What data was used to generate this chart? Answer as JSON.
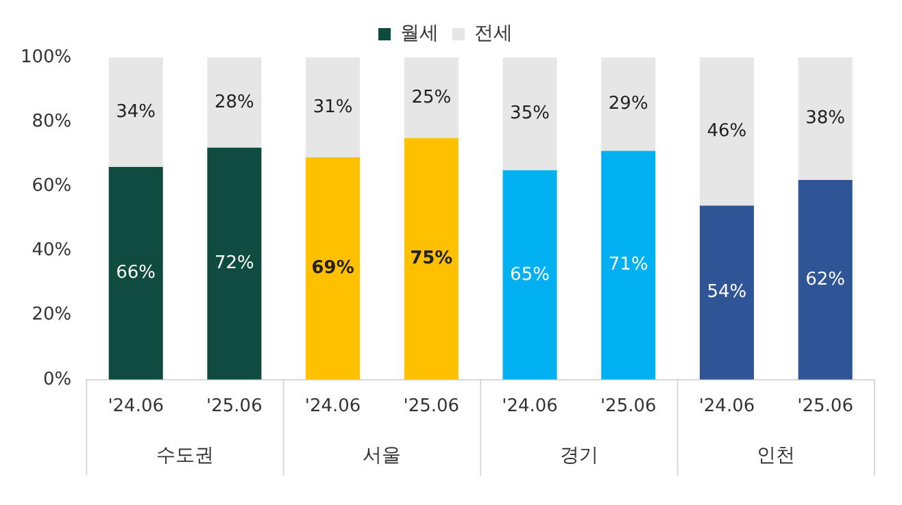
{
  "chart_data": {
    "type": "bar",
    "stacked": true,
    "categories": [
      "'24.06",
      "'25.06",
      "'24.06",
      "'25.06",
      "'24.06",
      "'25.06",
      "'24.06",
      "'25.06"
    ],
    "series": [
      {
        "name": "월세",
        "colors": [
          "#0f4c3f",
          "#0f4c3f",
          "#ffc000",
          "#ffc000",
          "#00b0f0",
          "#00b0f0",
          "#2f5597",
          "#2f5597"
        ],
        "values": [
          66,
          72,
          69,
          75,
          65,
          71,
          54,
          62
        ],
        "value_labels": [
          "66%",
          "72%",
          "69%",
          "75%",
          "65%",
          "71%",
          "54%",
          "62%"
        ]
      },
      {
        "name": "전세",
        "color": "#e7e6e6",
        "values": [
          34,
          28,
          31,
          25,
          35,
          29,
          46,
          38
        ],
        "value_labels": [
          "34%",
          "28%",
          "31%",
          "25%",
          "35%",
          "29%",
          "46%",
          "38%"
        ]
      }
    ],
    "annotations": [
      "수도권",
      "서울",
      "경기",
      "인천"
    ],
    "ylim": [
      0,
      100
    ],
    "yticks": [
      {
        "value": 0,
        "label": "0%"
      },
      {
        "value": 20,
        "label": "20%"
      },
      {
        "value": 40,
        "label": "40%"
      },
      {
        "value": 60,
        "label": "60%"
      },
      {
        "value": 80,
        "label": "80%"
      },
      {
        "value": 100,
        "label": "100%"
      }
    ],
    "legend": "top",
    "grid": false
  }
}
